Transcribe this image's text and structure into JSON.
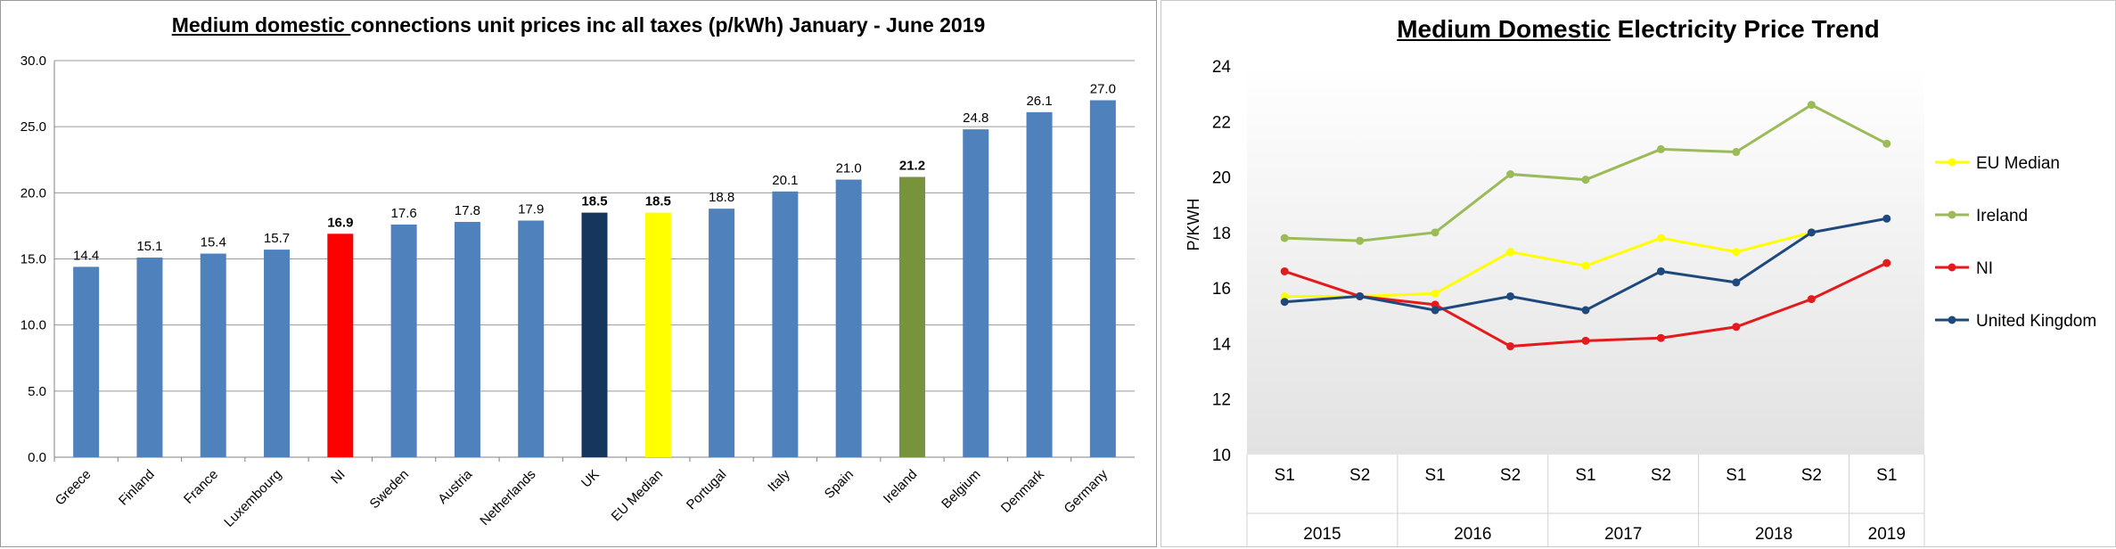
{
  "bar_chart": {
    "title_underlined": "Medium domestic ",
    "title_rest": "connections unit prices inc all taxes (p/kWh)   January - June 2019"
  },
  "line_chart": {
    "title_underlined": "Medium Domestic",
    "title_rest": " Electricity  Price  Trend"
  },
  "chart_data": [
    {
      "type": "bar",
      "title": "Medium domestic connections unit prices inc all taxes (p/kWh)   January - June 2019",
      "categories": [
        "Greece",
        "Finland",
        "France",
        "Luxembourg",
        "NI",
        "Sweden",
        "Austria",
        "Netherlands",
        "UK",
        "EU Median",
        "Portugal",
        "Italy",
        "Spain",
        "Ireland",
        "Belgium",
        "Denmark",
        "Germany"
      ],
      "values": [
        14.4,
        15.1,
        15.4,
        15.7,
        16.9,
        17.6,
        17.8,
        17.9,
        18.5,
        18.5,
        18.8,
        20.1,
        21.0,
        21.2,
        24.8,
        26.1,
        27.0
      ],
      "value_labels": [
        "14.4",
        "15.1",
        "15.4",
        "15.7",
        "16.9",
        "17.6",
        "17.8",
        "17.9",
        "18.5",
        "18.5",
        "18.8",
        "20.1",
        "21.0",
        "21.2",
        "24.8",
        "26.1",
        "27.0"
      ],
      "bold_labels": [
        "NI",
        "UK",
        "EU Median",
        "Ireland"
      ],
      "colors": {
        "default": "#4f81bd",
        "NI": "#ff0000",
        "UK": "#17365d",
        "EU Median": "#ffff00",
        "Ireland": "#77933c"
      },
      "ylim": [
        0,
        30
      ],
      "yticks": [
        "0.0",
        "5.0",
        "10.0",
        "15.0",
        "20.0",
        "25.0",
        "30.0"
      ],
      "grid": true,
      "xlabel": "",
      "ylabel": ""
    },
    {
      "type": "line",
      "title": "Medium Domestic Electricity Price Trend",
      "ylabel": "P/KWH",
      "ylim": [
        10,
        24
      ],
      "yticks": [
        "10",
        "12",
        "14",
        "16",
        "18",
        "20",
        "22",
        "24"
      ],
      "x_periods": [
        "S1",
        "S2",
        "S1",
        "S2",
        "S1",
        "S2",
        "S1",
        "S2",
        "S1"
      ],
      "x_years": [
        "2015",
        "2016",
        "2017",
        "2018",
        "2019"
      ],
      "legend_position": "right",
      "series": [
        {
          "name": "EU Median",
          "color": "#ffff00",
          "values": [
            15.7,
            15.7,
            15.8,
            17.3,
            16.8,
            17.8,
            17.3,
            18.0,
            null
          ]
        },
        {
          "name": "Ireland",
          "color": "#9bbb59",
          "values": [
            17.8,
            17.7,
            18.0,
            20.1,
            19.9,
            21.0,
            20.9,
            22.6,
            21.2
          ]
        },
        {
          "name": "NI",
          "color": "#e41a1c",
          "values": [
            16.6,
            15.7,
            15.4,
            13.9,
            14.1,
            14.2,
            14.6,
            15.6,
            16.9
          ]
        },
        {
          "name": "United Kingdom",
          "color": "#1f497d",
          "values": [
            15.5,
            15.7,
            15.2,
            15.7,
            15.2,
            16.6,
            16.2,
            18.0,
            18.5
          ]
        }
      ]
    }
  ]
}
